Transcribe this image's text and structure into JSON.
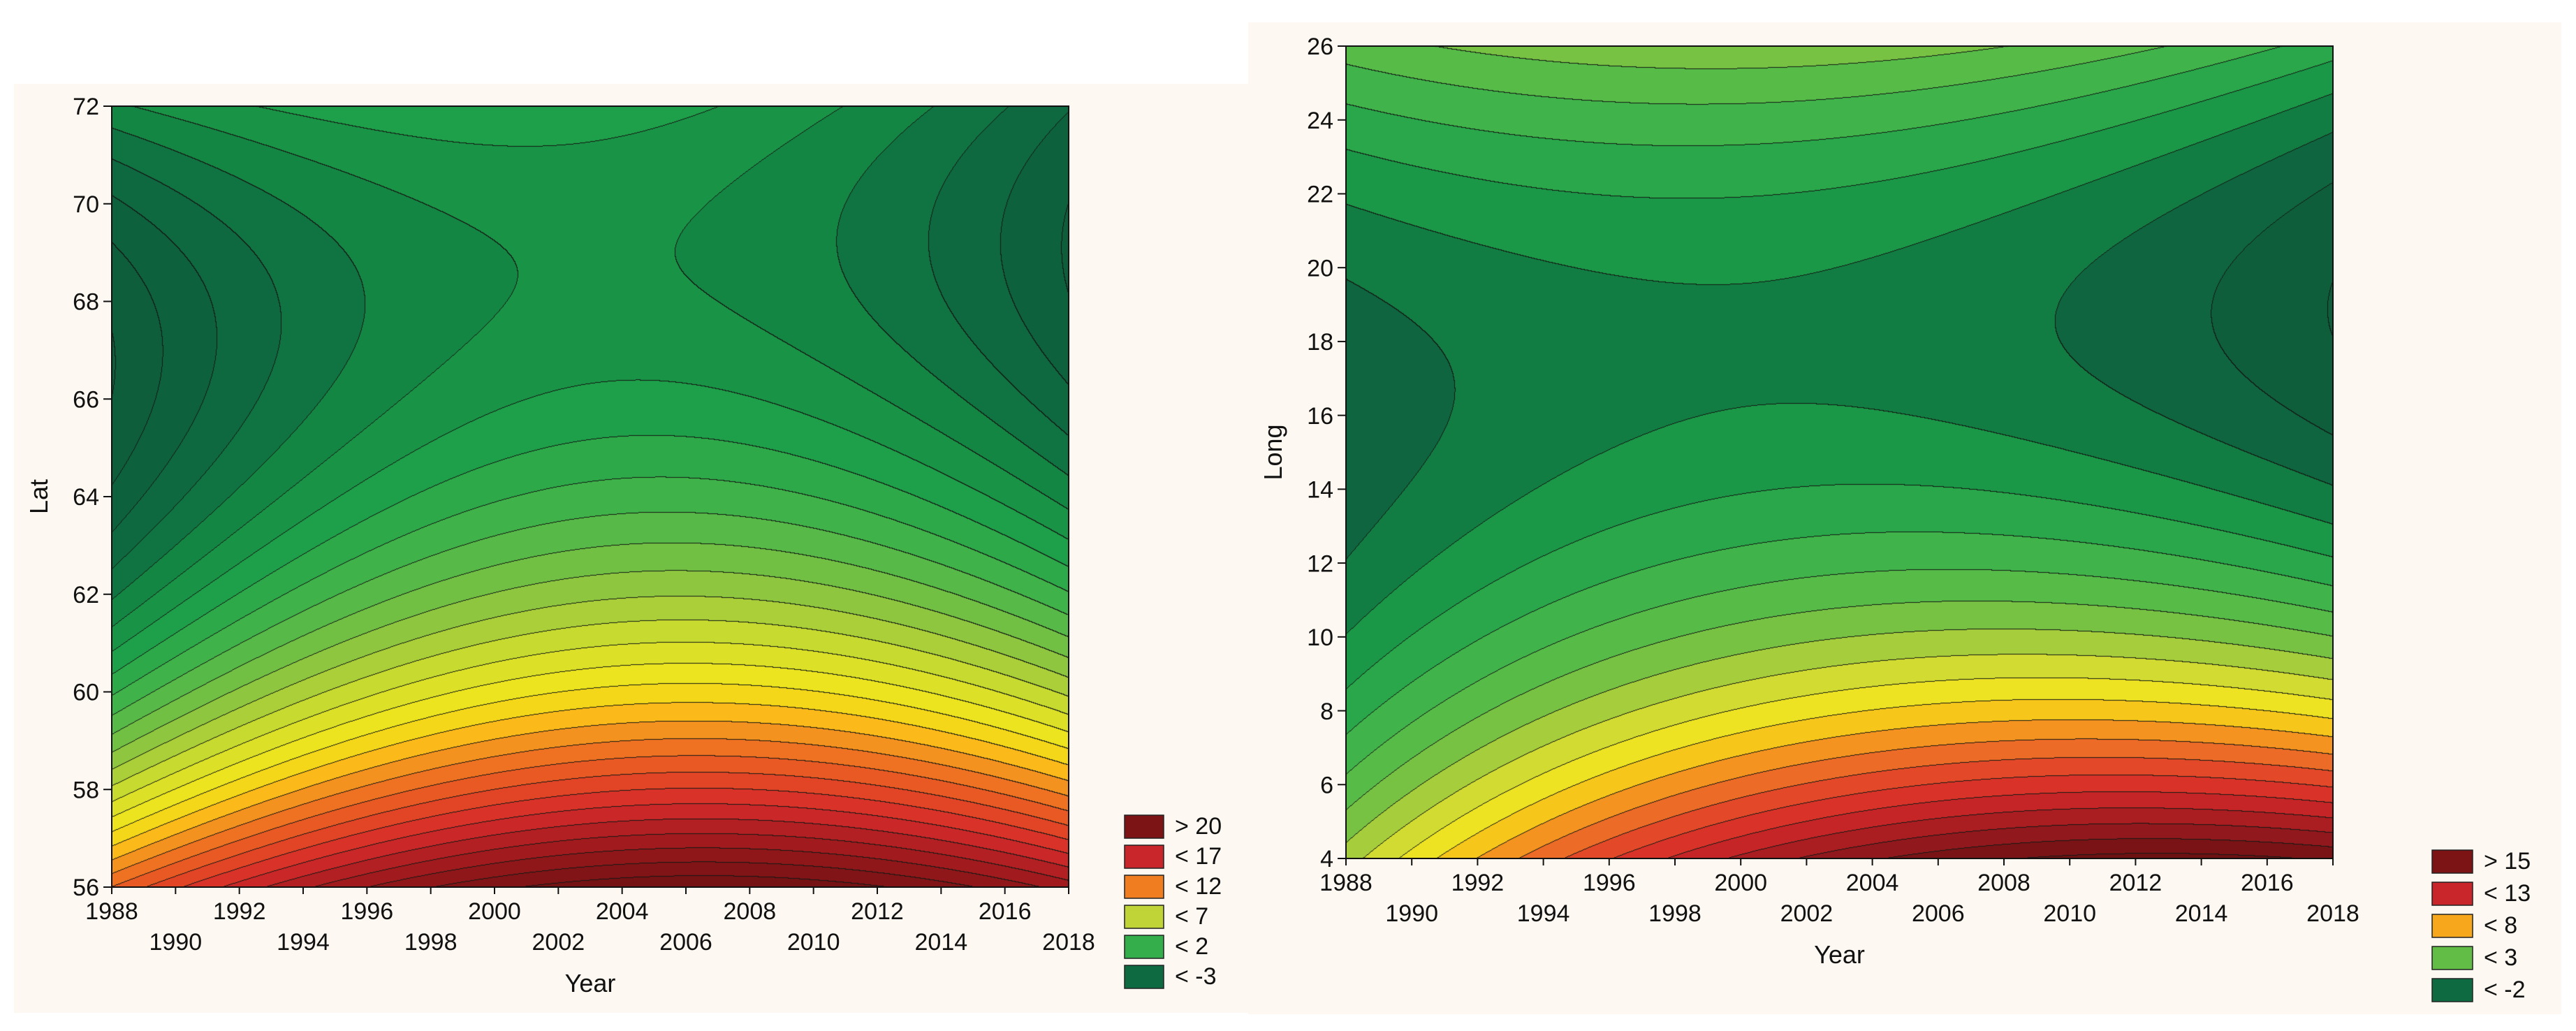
{
  "charts": [
    {
      "id": "left",
      "chart_data": {
        "type": "heatmap",
        "subtype": "filled-contour",
        "title": "",
        "xlabel": "Year",
        "ylabel": "Lat",
        "xlim": [
          1988,
          2018
        ],
        "ylim": [
          56,
          72
        ],
        "x_ticks_top_row": [
          "1988",
          "1992",
          "1996",
          "2000",
          "2004",
          "2008",
          "2012",
          "2016"
        ],
        "x_ticks_bottom_row": [
          "1990",
          "1994",
          "1998",
          "2002",
          "2006",
          "2010",
          "2014",
          "2018"
        ],
        "x_ticks_top_values": [
          1988,
          1992,
          1996,
          2000,
          2004,
          2008,
          2012,
          2016
        ],
        "x_ticks_bottom_values": [
          1990,
          1994,
          1998,
          2002,
          2006,
          2010,
          2014,
          2018
        ],
        "y_ticks": [
          "56",
          "58",
          "60",
          "62",
          "64",
          "66",
          "68",
          "70",
          "72"
        ],
        "y_tick_values": [
          56,
          58,
          60,
          62,
          64,
          66,
          68,
          70,
          72
        ],
        "legend": [
          {
            "label": "> 20",
            "color": "#7c1416"
          },
          {
            "label": "< 17",
            "color": "#c8262b"
          },
          {
            "label": "< 12",
            "color": "#f07e21"
          },
          {
            "label": "< 7",
            "color": "#c0d437"
          },
          {
            "label": "< 2",
            "color": "#34ae4b"
          },
          {
            "label": "< -3",
            "color": "#0e6b41"
          }
        ],
        "legend_position": "bottom-right outside",
        "surface": {
          "x_nodes": [
            1988,
            2003,
            2018
          ],
          "y_nodes": [
            56,
            64,
            72
          ],
          "values": [
            [
              14,
              22.5,
              19.5
            ],
            [
              -4.8,
              2.4,
              -1.4
            ],
            [
              -1.2,
              0.6,
              -3.9
            ]
          ]
        },
        "level_range": [
          -5,
          22
        ],
        "level_step": 1,
        "color_stops": [
          [
            -5,
            "#0e5e3c"
          ],
          [
            -3,
            "#0e6b41"
          ],
          [
            -1,
            "#168f44"
          ],
          [
            0.5,
            "#1e9f49"
          ],
          [
            2,
            "#34ae4b"
          ],
          [
            4,
            "#62bd46"
          ],
          [
            6,
            "#9cca3c"
          ],
          [
            8,
            "#d4df2b"
          ],
          [
            10,
            "#f2e619"
          ],
          [
            11.5,
            "#fbb91a"
          ],
          [
            13,
            "#f07e21"
          ],
          [
            15,
            "#e64c25"
          ],
          [
            17,
            "#d42b2a"
          ],
          [
            19,
            "#a81c20"
          ],
          [
            21,
            "#861518"
          ],
          [
            23,
            "#6e1113"
          ]
        ]
      }
    },
    {
      "id": "right",
      "chart_data": {
        "type": "heatmap",
        "subtype": "filled-contour",
        "title": "",
        "xlabel": "Year",
        "ylabel": "Long",
        "xlim": [
          1988,
          2018
        ],
        "ylim": [
          4,
          26
        ],
        "x_ticks_top_row": [
          "1988",
          "1992",
          "1996",
          "2000",
          "2004",
          "2008",
          "2012",
          "2016"
        ],
        "x_ticks_bottom_row": [
          "1990",
          "1994",
          "1998",
          "2002",
          "2006",
          "2010",
          "2014",
          "2018"
        ],
        "x_ticks_top_values": [
          1988,
          1992,
          1996,
          2000,
          2004,
          2008,
          2012,
          2016
        ],
        "x_ticks_bottom_values": [
          1990,
          1994,
          1998,
          2002,
          2006,
          2010,
          2014,
          2018
        ],
        "y_ticks": [
          "4",
          "6",
          "8",
          "10",
          "12",
          "14",
          "16",
          "18",
          "20",
          "22",
          "24",
          "26"
        ],
        "y_tick_values": [
          4,
          6,
          8,
          10,
          12,
          14,
          16,
          18,
          20,
          22,
          24,
          26
        ],
        "legend": [
          {
            "label": "> 15",
            "color": "#7c1416"
          },
          {
            "label": "< 13",
            "color": "#c8262b"
          },
          {
            "label": "< 8",
            "color": "#f7a71c"
          },
          {
            "label": "< 3",
            "color": "#62bd46"
          },
          {
            "label": "< -2",
            "color": "#0e6b41"
          }
        ],
        "legend_position": "bottom-right outside",
        "surface": {
          "x_nodes": [
            1988,
            2003,
            2018
          ],
          "y_nodes": [
            4,
            15,
            26
          ],
          "values": [
            [
              4.5,
              14.5,
              15.8
            ],
            [
              -2.7,
              -0.5,
              -2.7
            ],
            [
              2.5,
              3.6,
              0.5
            ]
          ]
        },
        "level_range": [
          -3,
          16
        ],
        "level_step": 1,
        "color_stops": [
          [
            -3,
            "#0e5e3c"
          ],
          [
            -2,
            "#0e6b41"
          ],
          [
            -1,
            "#168f44"
          ],
          [
            0,
            "#1e9f49"
          ],
          [
            1,
            "#34ae4b"
          ],
          [
            2,
            "#4bb84a"
          ],
          [
            3,
            "#62bd46"
          ],
          [
            4,
            "#8cc63f"
          ],
          [
            5,
            "#c0d437"
          ],
          [
            6,
            "#e3e22a"
          ],
          [
            7,
            "#f7e41a"
          ],
          [
            8,
            "#f7a71c"
          ],
          [
            9,
            "#f07e21"
          ],
          [
            10,
            "#e8572a"
          ],
          [
            11,
            "#dd3a28"
          ],
          [
            12,
            "#d42b2a"
          ],
          [
            13,
            "#b81f24"
          ],
          [
            14,
            "#9c1a1e"
          ],
          [
            15,
            "#851519"
          ],
          [
            16,
            "#6e1113"
          ]
        ]
      }
    }
  ]
}
